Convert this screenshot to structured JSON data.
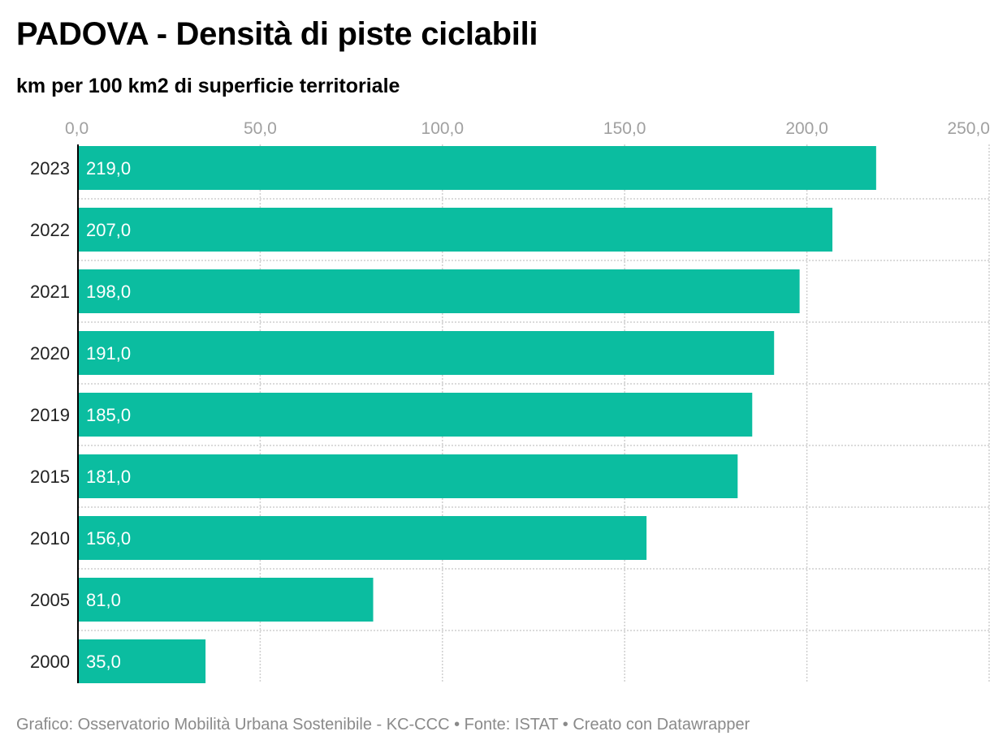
{
  "title": "PADOVA - Densità di piste ciclabili",
  "subtitle": "km per 100 km2 di superficie territoriale",
  "footer": "Grafico: Osservatorio Mobilità Urbana Sostenibile - KC-CCC • Fonte: ISTAT • Creato con Datawrapper",
  "colors": {
    "bar": "#0bbda0",
    "grid": "#cfcfcf",
    "axis": "#000000"
  },
  "chart_data": {
    "type": "bar",
    "orientation": "horizontal",
    "categories": [
      "2023",
      "2022",
      "2021",
      "2020",
      "2019",
      "2015",
      "2010",
      "2005",
      "2000"
    ],
    "values": [
      219.0,
      207.0,
      198.0,
      191.0,
      185.0,
      181.0,
      156.0,
      81.0,
      35.0
    ],
    "value_labels": [
      "219,0",
      "207,0",
      "198,0",
      "191,0",
      "185,0",
      "181,0",
      "156,0",
      "81,0",
      "35,0"
    ],
    "xlim": [
      0,
      250
    ],
    "x_ticks": [
      0,
      50,
      100,
      150,
      200,
      250
    ],
    "x_tick_labels": [
      "0,0",
      "50,0",
      "100,0",
      "150,0",
      "200,0",
      "250,0"
    ],
    "grid": true,
    "axis_position": "top"
  }
}
